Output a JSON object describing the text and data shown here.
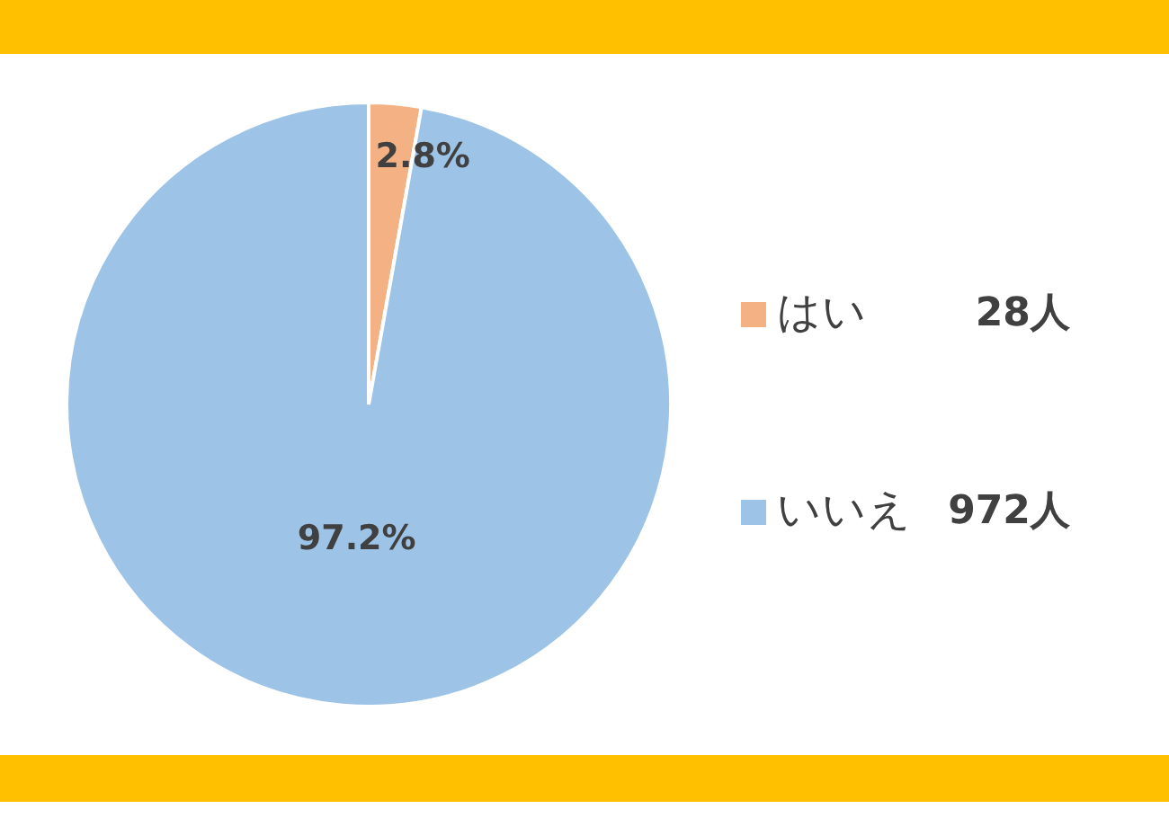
{
  "chart_data": {
    "type": "pie",
    "categories": [
      "はい",
      "いいえ"
    ],
    "values": [
      2.8,
      97.2
    ],
    "colors": [
      "#f4b183",
      "#9dc3e6"
    ],
    "value_labels": [
      "2.8%",
      "97.2%"
    ],
    "legend": "right",
    "annotations": [
      "28人",
      "972人"
    ]
  }
}
